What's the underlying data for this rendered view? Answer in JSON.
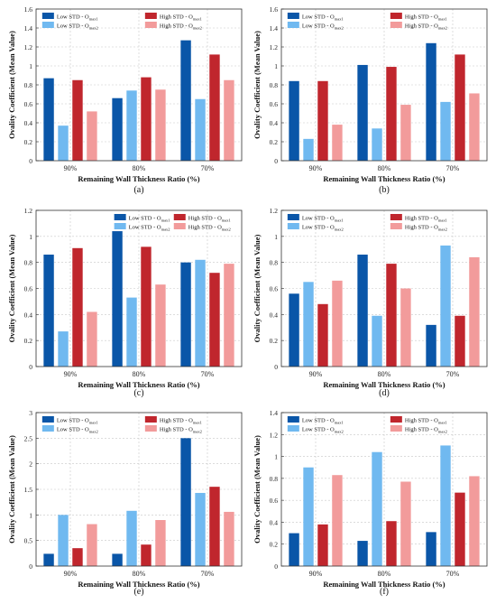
{
  "figure": {
    "panel_captions": [
      "(a)",
      "(b)",
      "(c)",
      "(d)",
      "(e)",
      "(f)"
    ]
  },
  "colors": {
    "low_omax1": "#0a56a8",
    "low_omax2": "#70b9f0",
    "high_omax1": "#c0262d",
    "high_omax2": "#f29b9b",
    "grid": "#c8c8c8",
    "axis": "#333333"
  },
  "chart_data": [
    {
      "panel": "(a)",
      "type": "bar",
      "xlabel": "Remaining Wall Thickness Ratio (%)",
      "ylabel": "Ovality Coefficient (Mean Value)",
      "categories": [
        "90%",
        "80%",
        "70%"
      ],
      "ylim": [
        0,
        1.6
      ],
      "yticks": [
        "0",
        "0.2",
        "0.4",
        "0.6",
        "0.8",
        "1",
        "1.2",
        "1.4",
        "1.6"
      ],
      "legend_position": "top",
      "series": [
        {
          "name": "Low STD - O",
          "sub": "max1",
          "values": [
            0.87,
            0.66,
            1.27
          ]
        },
        {
          "name": "Low STD - O",
          "sub": "max2",
          "values": [
            0.37,
            0.74,
            0.65
          ]
        },
        {
          "name": "High STD - O",
          "sub": "max1",
          "values": [
            0.85,
            0.88,
            1.12
          ]
        },
        {
          "name": "High STD - O",
          "sub": "max2",
          "values": [
            0.52,
            0.75,
            0.85
          ]
        }
      ],
      "grid": true
    },
    {
      "panel": "(b)",
      "type": "bar",
      "xlabel": "Remaining Wall Thickness Ratio (%)",
      "ylabel": "Ovality Coefficient (Mean Value)",
      "categories": [
        "90%",
        "80%",
        "70%"
      ],
      "ylim": [
        0,
        1.6
      ],
      "yticks": [
        "0",
        "0.2",
        "0.4",
        "0.6",
        "0.8",
        "1",
        "1.2",
        "1.4",
        "1.6"
      ],
      "legend_position": "top",
      "series": [
        {
          "name": "Low STD - O",
          "sub": "max1",
          "values": [
            0.84,
            1.01,
            1.24
          ]
        },
        {
          "name": "Low STD - O",
          "sub": "max2",
          "values": [
            0.23,
            0.34,
            0.62
          ]
        },
        {
          "name": "High STD - O",
          "sub": "max1",
          "values": [
            0.84,
            0.99,
            1.12
          ]
        },
        {
          "name": "High STD - O",
          "sub": "max2",
          "values": [
            0.38,
            0.59,
            0.71
          ]
        }
      ],
      "grid": true
    },
    {
      "panel": "(c)",
      "type": "bar",
      "xlabel": "Remaining Wall Thickness Ratio (%)",
      "ylabel": "Ovality Coefficient (Mean Value)",
      "categories": [
        "90%",
        "80%",
        "70%"
      ],
      "ylim": [
        0,
        1.2
      ],
      "yticks": [
        "0",
        "0.2",
        "0.4",
        "0.6",
        "0.8",
        "1",
        "1.2"
      ],
      "legend_position": "top-right",
      "series": [
        {
          "name": "Low STD - O",
          "sub": "max1",
          "values": [
            0.86,
            1.04,
            0.8
          ]
        },
        {
          "name": "Low STD - O",
          "sub": "max2",
          "values": [
            0.27,
            0.53,
            0.82
          ]
        },
        {
          "name": "High STD - O",
          "sub": "max1",
          "values": [
            0.91,
            0.92,
            0.72
          ]
        },
        {
          "name": "High STD - O",
          "sub": "max2",
          "values": [
            0.42,
            0.63,
            0.79
          ]
        }
      ],
      "grid": true
    },
    {
      "panel": "(d)",
      "type": "bar",
      "xlabel": "Remaining Wall Thickness Ratio (%)",
      "ylabel": "Ovality Coefficient (Mean Value)",
      "categories": [
        "90%",
        "80%",
        "70%"
      ],
      "ylim": [
        0,
        1.2
      ],
      "yticks": [
        "0",
        "0.2",
        "0.4",
        "0.6",
        "0.8",
        "1",
        "1.2"
      ],
      "legend_position": "top",
      "series": [
        {
          "name": "Low STD - O",
          "sub": "max1",
          "values": [
            0.56,
            0.86,
            0.32
          ]
        },
        {
          "name": "Low STD - O",
          "sub": "max2",
          "values": [
            0.65,
            0.39,
            0.93
          ]
        },
        {
          "name": "High STD - O",
          "sub": "max1",
          "values": [
            0.48,
            0.79,
            0.39
          ]
        },
        {
          "name": "High STD - O",
          "sub": "max2",
          "values": [
            0.66,
            0.6,
            0.84
          ]
        }
      ],
      "grid": true
    },
    {
      "panel": "(e)",
      "type": "bar",
      "xlabel": "Remaining Wall Thickness Ratio (%)",
      "ylabel": "Ovality Coefficient (Mean Value)",
      "categories": [
        "90%",
        "80%",
        "70%"
      ],
      "ylim": [
        0,
        3
      ],
      "yticks": [
        "0",
        "0.5",
        "1",
        "1.5",
        "2",
        "2.5",
        "3"
      ],
      "legend_position": "top",
      "series": [
        {
          "name": "Low STD - O",
          "sub": "max1",
          "values": [
            0.24,
            0.24,
            2.5
          ]
        },
        {
          "name": "Low STD - O",
          "sub": "max2",
          "values": [
            1.0,
            1.08,
            1.43
          ]
        },
        {
          "name": "High STD - O",
          "sub": "max1",
          "values": [
            0.35,
            0.42,
            1.55
          ]
        },
        {
          "name": "High STD - O",
          "sub": "max2",
          "values": [
            0.82,
            0.9,
            1.06
          ]
        }
      ],
      "grid": true
    },
    {
      "panel": "(f)",
      "type": "bar",
      "xlabel": "Remaining Wall Thickness Ratio (%)",
      "ylabel": "Ovality Coefficient (Mean Value)",
      "categories": [
        "90%",
        "80%",
        "70%"
      ],
      "ylim": [
        0,
        1.4
      ],
      "yticks": [
        "0",
        "0.2",
        "0.4",
        "0.6",
        "0.8",
        "1",
        "1.2",
        "1.4"
      ],
      "legend_position": "top",
      "series": [
        {
          "name": "Low STD - O",
          "sub": "max1",
          "values": [
            0.3,
            0.23,
            0.31
          ]
        },
        {
          "name": "Low STD - O",
          "sub": "max2",
          "values": [
            0.9,
            1.04,
            1.1
          ]
        },
        {
          "name": "High STD - O",
          "sub": "max1",
          "values": [
            0.38,
            0.41,
            0.67
          ]
        },
        {
          "name": "High STD - O",
          "sub": "max2",
          "values": [
            0.83,
            0.77,
            0.82
          ]
        }
      ],
      "grid": true
    }
  ]
}
